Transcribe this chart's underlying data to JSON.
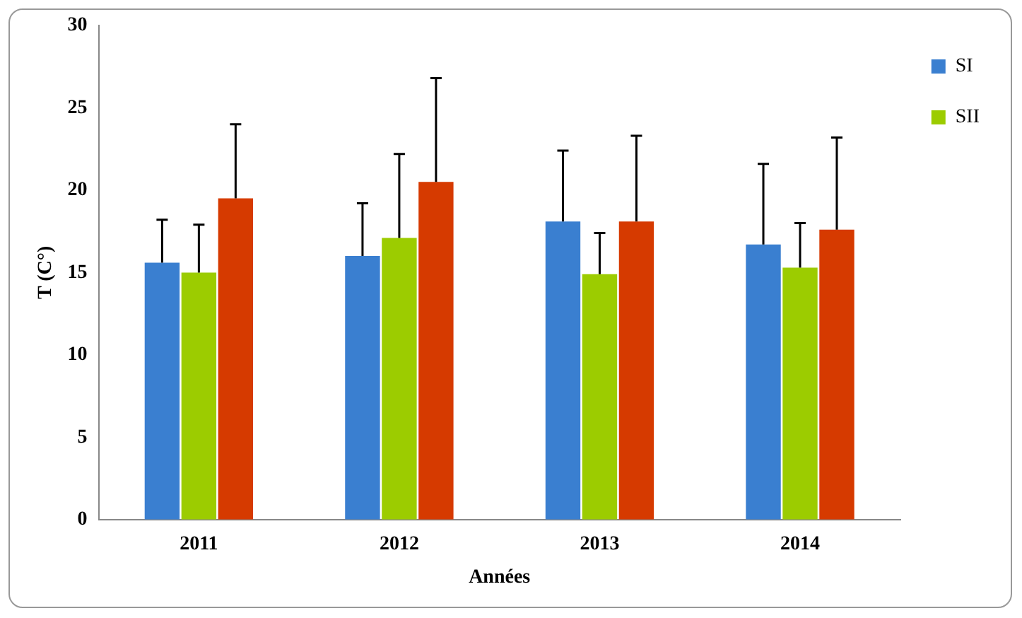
{
  "chart_data": {
    "type": "bar",
    "xlabel": "Années",
    "ylabel": "T (C°)",
    "categories": [
      "2011",
      "2012",
      "2013",
      "2014"
    ],
    "series": [
      {
        "name": "SI",
        "color": "#3a7fd0",
        "values": [
          15.6,
          16.0,
          18.1,
          16.7
        ],
        "errors": [
          [
            15.6,
            18.2
          ],
          [
            16.0,
            19.2
          ],
          [
            18.1,
            22.4
          ],
          [
            16.7,
            21.6
          ]
        ]
      },
      {
        "name": "SII",
        "color": "#9ccc00",
        "values": [
          15.0,
          17.1,
          14.9,
          15.3
        ],
        "errors": [
          [
            15.0,
            17.9
          ],
          [
            17.1,
            22.2
          ],
          [
            14.9,
            17.4
          ],
          [
            15.3,
            18.0
          ]
        ]
      },
      {
        "color": "#d63a00",
        "values": [
          19.5,
          20.5,
          18.1,
          17.6
        ],
        "errors": [
          [
            19.5,
            24.0
          ],
          [
            20.5,
            26.8
          ],
          [
            18.1,
            23.3
          ],
          [
            17.6,
            23.2
          ]
        ]
      }
    ],
    "ylim": [
      0,
      30
    ],
    "yticks": [
      0,
      5,
      10,
      15,
      20,
      25,
      30
    ],
    "grid": false,
    "legend": "top right"
  }
}
